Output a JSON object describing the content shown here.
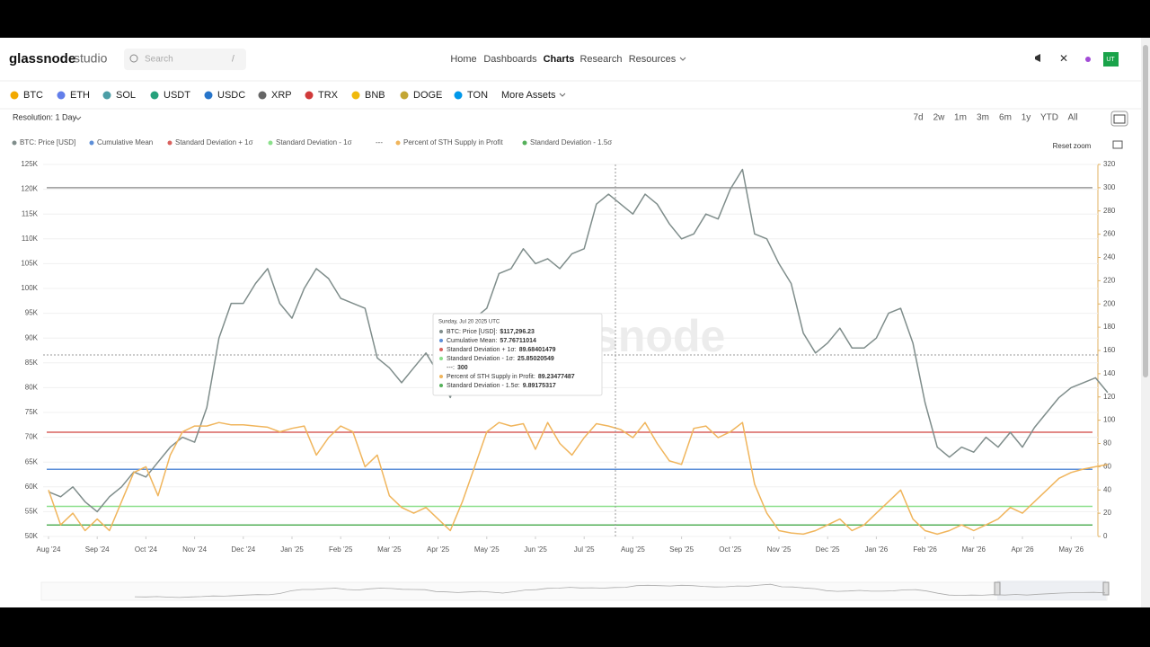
{
  "header": {
    "logo": "glassnode",
    "logo_suffix": "studio",
    "search": "Search",
    "search_key": "/",
    "nav": [
      "Home",
      "Dashboards",
      "Charts",
      "Research",
      "Resources"
    ],
    "avatar": "UT"
  },
  "assets": [
    "BTC",
    "ETH",
    "SOL",
    "USDT",
    "USDC",
    "XRP",
    "TRX",
    "BNB",
    "DOGE",
    "TON"
  ],
  "more_assets": "More Assets",
  "toolbar": {
    "resolution": "Resolution: 1 Day",
    "ranges": [
      "7d",
      "2w",
      "1m",
      "3m",
      "6m",
      "1y",
      "YTD",
      "All"
    ],
    "reset_zoom": "Reset zoom"
  },
  "chart_data": {
    "type": "line",
    "watermark": "glassnode",
    "categories": [
      "Aug '24",
      null,
      null,
      null,
      "Sep '24",
      null,
      null,
      null,
      "Oct '24",
      null,
      null,
      null,
      "Nov '24",
      null,
      null,
      null,
      "Dec '24",
      null,
      null,
      null,
      "Jan '25",
      null,
      null,
      null,
      "Feb '25",
      null,
      null,
      null,
      "Mar '25",
      null,
      null,
      null,
      "Apr '25",
      null,
      null,
      null,
      "May '25",
      null,
      null,
      null,
      "Jun '25",
      null,
      null,
      null,
      "Jul '25",
      null,
      null,
      null,
      "Aug '25",
      null,
      null,
      null,
      "Sep '25",
      null,
      null,
      null,
      "Oct '25",
      null,
      null,
      null,
      "Nov '25",
      null,
      null,
      null,
      "Dec '25",
      null,
      null,
      null,
      "Jan '26",
      null,
      null,
      null,
      "Feb '26",
      null,
      null,
      null,
      "Mar '26",
      null,
      null,
      null,
      "Apr '26",
      null,
      null,
      null,
      "May '26",
      null,
      null,
      null
    ],
    "series": [
      {
        "name": "BTC: Price [USD]",
        "color": "#7f8d8b",
        "axis": "y",
        "values": [
          59000,
          58000,
          60000,
          57000,
          55000,
          58000,
          60000,
          63000,
          62000,
          65000,
          68000,
          70000,
          69000,
          76000,
          90000,
          97000,
          97000,
          101000,
          104000,
          97000,
          94000,
          100000,
          104000,
          102000,
          98000,
          97000,
          96000,
          86000,
          84000,
          81000,
          84000,
          87000,
          83000,
          78000,
          85000,
          94000,
          96000,
          103000,
          104000,
          108000,
          105000,
          106000,
          104000,
          107000,
          108000,
          117000,
          119000,
          117000,
          115000,
          119000,
          117000,
          113000,
          110000,
          111000,
          115000,
          114000,
          120000,
          124000,
          111000,
          110000,
          105000,
          101000,
          91000,
          87000,
          89000,
          92000,
          88000,
          88000,
          90000,
          95000,
          96000,
          89000,
          77000,
          68000,
          66000,
          68000,
          67000,
          70000,
          68000,
          71000,
          68000,
          72000,
          75000,
          78000,
          80000,
          81000,
          82000,
          79000
        ]
      },
      {
        "name": "Percent of STH Supply in Profit",
        "color": "#f0b55c",
        "axis": "y2",
        "values": [
          40,
          10,
          20,
          5,
          15,
          5,
          30,
          55,
          60,
          35,
          70,
          90,
          95,
          95,
          98,
          96,
          96,
          95,
          94,
          90,
          93,
          95,
          70,
          85,
          95,
          90,
          60,
          70,
          35,
          25,
          20,
          25,
          15,
          5,
          30,
          60,
          90,
          98,
          95,
          97,
          75,
          98,
          80,
          70,
          85,
          97,
          95,
          92,
          85,
          98,
          80,
          65,
          62,
          93,
          95,
          85,
          90,
          98,
          45,
          20,
          5,
          3,
          2,
          5,
          10,
          15,
          5,
          10,
          20,
          30,
          40,
          15,
          5,
          2,
          5,
          10,
          5,
          10,
          15,
          25,
          20,
          30,
          40,
          50,
          55,
          58,
          60,
          62
        ]
      }
    ],
    "reference_lines": [
      {
        "name": "Cumulative Mean",
        "color": "#5d8fd8",
        "axis": "y2",
        "value": 57.76711014
      },
      {
        "name": "Standard Deviation + 1σ",
        "color": "#d9625e",
        "axis": "y2",
        "value": 89.68401479
      },
      {
        "name": "Standard Deviation - 1σ",
        "color": "#8be08b",
        "axis": "y2",
        "value": 25.85020549
      },
      {
        "name": "---",
        "color": "#9a9a9a",
        "axis": "y2",
        "value": 300
      },
      {
        "name": "Standard Deviation - 1.5σ",
        "color": "#55b05a",
        "axis": "y2",
        "value": 9.89175317
      }
    ],
    "ylim": [
      50000,
      125000
    ],
    "yticks": [
      {
        "value": 50000,
        "label": "50K"
      },
      {
        "value": 55000,
        "label": "55K"
      },
      {
        "value": 60000,
        "label": "60K"
      },
      {
        "value": 65000,
        "label": "65K"
      },
      {
        "value": 70000,
        "label": "70K"
      },
      {
        "value": 75000,
        "label": "75K"
      },
      {
        "value": 80000,
        "label": "80K"
      },
      {
        "value": 85000,
        "label": "85K"
      },
      {
        "value": 90000,
        "label": "90K"
      },
      {
        "value": 95000,
        "label": "95K"
      },
      {
        "value": 100000,
        "label": "100K"
      },
      {
        "value": 105000,
        "label": "105K"
      },
      {
        "value": 110000,
        "label": "110K"
      },
      {
        "value": 115000,
        "label": "115K"
      },
      {
        "value": 120000,
        "label": "120K"
      },
      {
        "value": 125000,
        "label": "125K"
      }
    ],
    "y2lim": [
      0,
      320
    ],
    "y2ticks": [
      0,
      20,
      40,
      60,
      80,
      100,
      120,
      140,
      160,
      180,
      200,
      220,
      240,
      260,
      280,
      300,
      320
    ],
    "grid": true,
    "tooltip": {
      "date": "Sunday, Jul 20 2025 UTC",
      "rows": [
        {
          "label": "BTC: Price [USD]:",
          "value": "$117,296.23"
        },
        {
          "label": "Cumulative Mean:",
          "value": "57.76711014"
        },
        {
          "label": "Standard Deviation + 1σ:",
          "value": "89.68401479"
        },
        {
          "label": "Standard Deviation - 1σ:",
          "value": "25.85020549"
        },
        {
          "label": "---:",
          "value": "300"
        },
        {
          "label": "Percent of STH Supply in Profit:",
          "value": "89.23477487"
        },
        {
          "label": "Standard Deviation - 1.5σ:",
          "value": "9.89175317"
        }
      ]
    }
  }
}
